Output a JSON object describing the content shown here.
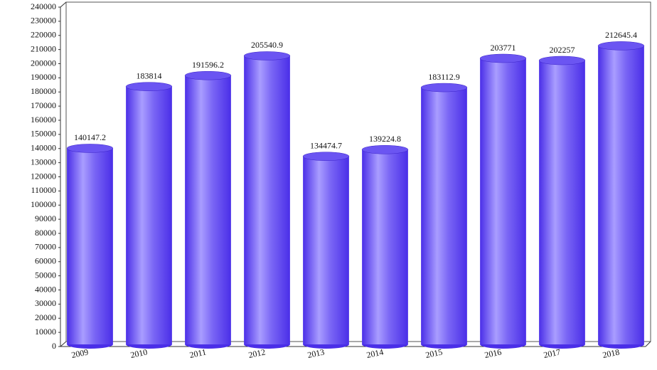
{
  "chart_data": {
    "type": "bar",
    "categories": [
      "2009",
      "2010",
      "2011",
      "2012",
      "2013",
      "2014",
      "2015",
      "2016",
      "2017",
      "2018"
    ],
    "values": [
      140147.2,
      183814,
      191596.2,
      205540.9,
      134474.7,
      139224.8,
      183112.9,
      203771,
      202257,
      212645.4
    ],
    "color": "#4a2ee8",
    "ylim": [
      0,
      240000
    ],
    "yticks": [
      0,
      10000,
      20000,
      30000,
      40000,
      50000,
      60000,
      70000,
      80000,
      90000,
      100000,
      110000,
      120000,
      130000,
      140000,
      150000,
      160000,
      170000,
      180000,
      190000,
      200000,
      210000,
      220000,
      230000,
      240000
    ],
    "grid": false
  }
}
